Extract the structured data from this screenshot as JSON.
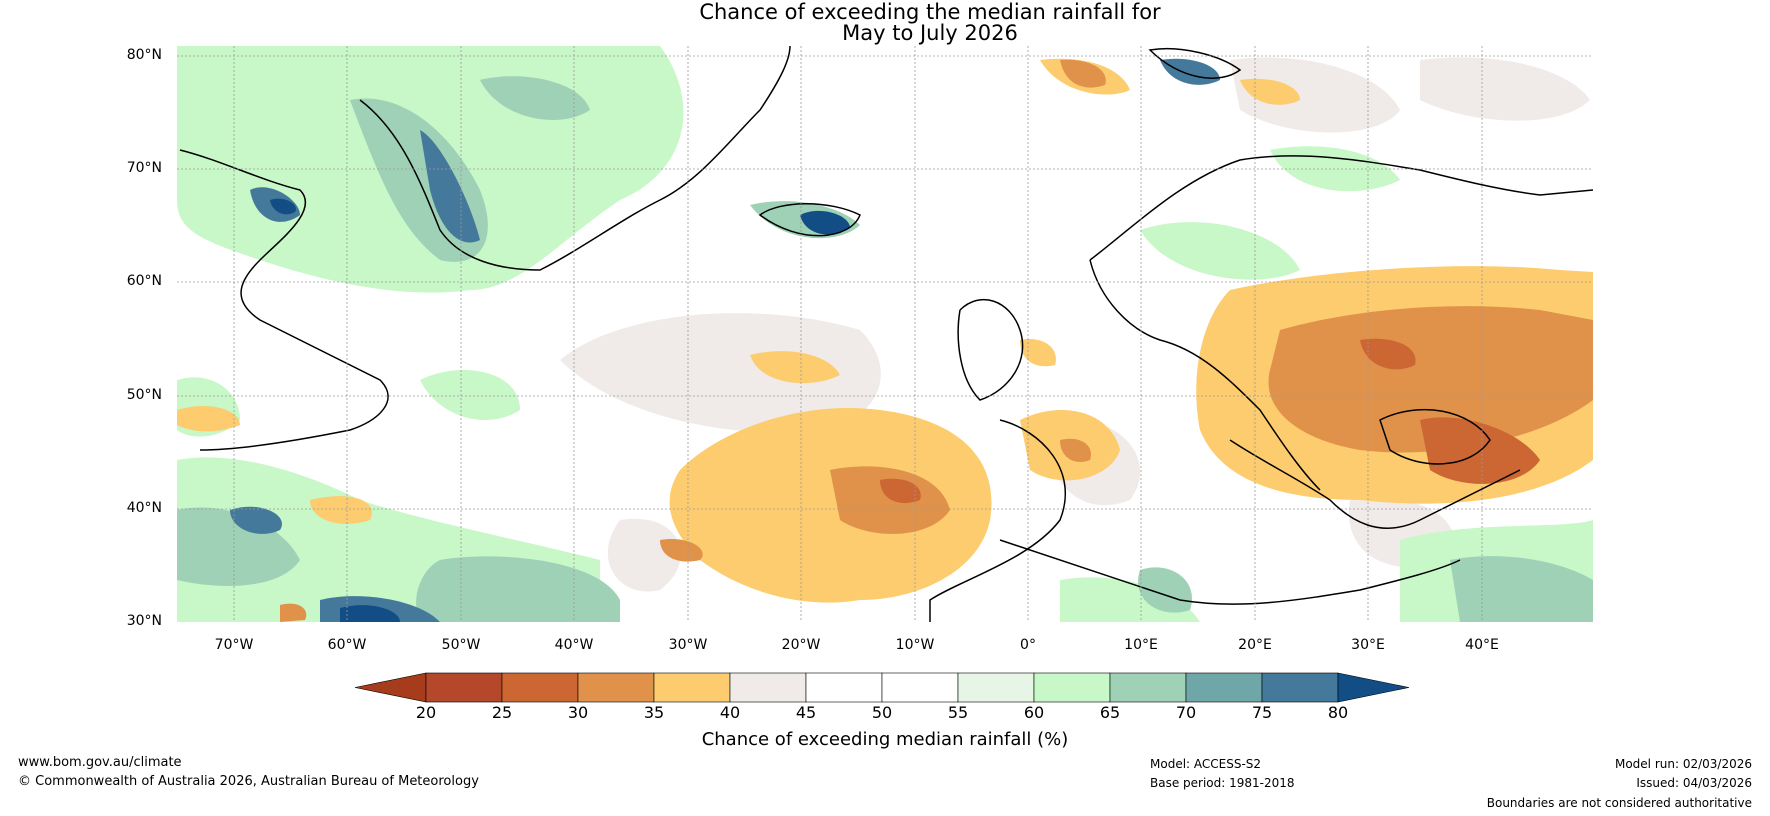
{
  "title": {
    "line1": "Chance of exceeding the median rainfall for",
    "line2": "May to July 2026"
  },
  "map": {
    "latitude_labels": [
      "80°N",
      "70°N",
      "60°N",
      "50°N",
      "40°N",
      "30°N"
    ],
    "longitude_labels": [
      "70°W",
      "60°W",
      "50°W",
      "40°W",
      "30°W",
      "20°W",
      "10°W",
      "0°",
      "10°E",
      "20°E",
      "30°E",
      "40°E"
    ]
  },
  "colorbar": {
    "ticks": [
      "20",
      "25",
      "30",
      "35",
      "40",
      "45",
      "50",
      "55",
      "60",
      "65",
      "70",
      "75",
      "80"
    ],
    "colors": [
      "#a63c1c",
      "#b5482a",
      "#cc6633",
      "#e0924a",
      "#fdcc6e",
      "#f0ebe8",
      "#ffffff",
      "#ffffff",
      "#e6f5e6",
      "#c8f7c8",
      "#9fd1b7",
      "#6fa6a8",
      "#45799b",
      "#124d85"
    ],
    "label": "Chance of exceeding median rainfall (%)"
  },
  "footer": {
    "website": "www.bom.gov.au/climate",
    "copyright": "© Commonwealth of Australia 2026, Australian Bureau of Meteorology",
    "model": "Model: ACCESS-S2",
    "base_period": "Base period: 1981-2018",
    "model_run": "Model run: 02/03/2026",
    "issued": "Issued: 04/03/2026",
    "disclaimer": "Boundaries are not considered authoritative"
  }
}
